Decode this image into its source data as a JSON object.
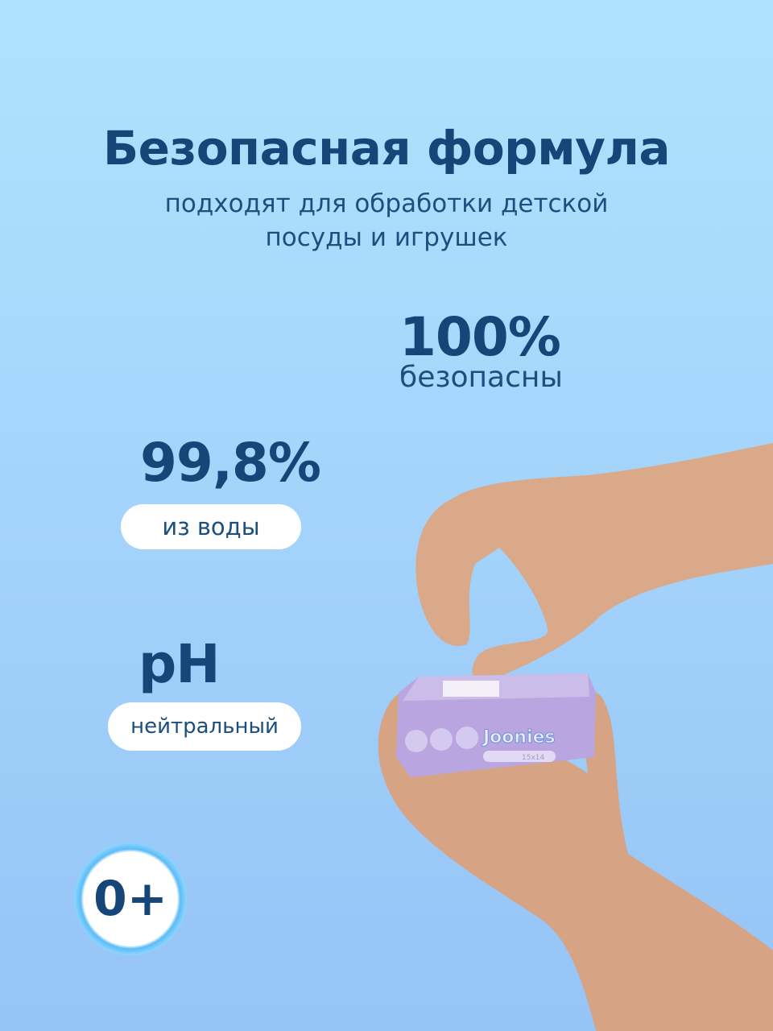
{
  "title": "Безопасная формула",
  "subtitle_line1": "подходят для обработки детской",
  "subtitle_line2": "посуды и игрушек",
  "features": [
    {
      "value": "100%",
      "label": "безопасны"
    },
    {
      "value": "99,8%",
      "label": "из воды"
    },
    {
      "value": "pH",
      "label": "нейтральный"
    }
  ],
  "age_badge": "0+",
  "product": {
    "brand": "Joonies",
    "size": "15x14"
  },
  "colors": {
    "text": "#154677",
    "background_top": "#b0e2fd",
    "background_bottom": "#95c4f6",
    "pack": "#b9a6e0"
  }
}
